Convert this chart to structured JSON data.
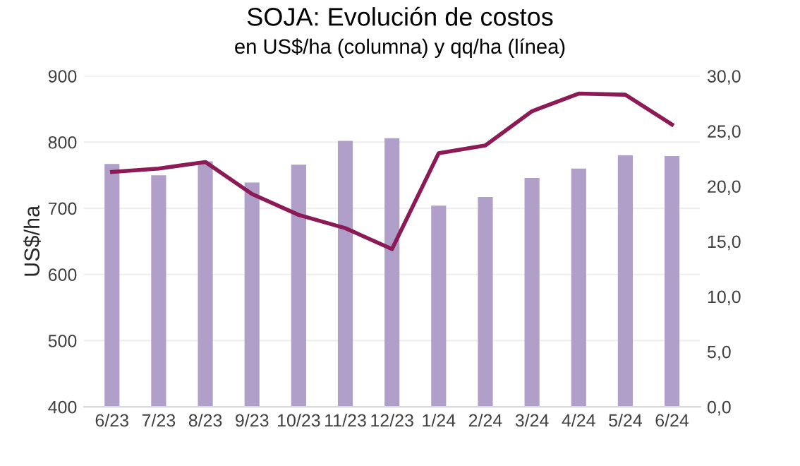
{
  "chart_data": {
    "type": "bar",
    "title": "SOJA: Evolución de costos",
    "subtitle": "en US$/ha (columna) y qq/ha (línea)",
    "ylabel": "US$/ha",
    "categories": [
      "6/23",
      "7/23",
      "8/23",
      "9/23",
      "10/23",
      "11/23",
      "12/23",
      "1/24",
      "2/24",
      "3/24",
      "4/24",
      "5/24",
      "6/24"
    ],
    "series": [
      {
        "color": "#b09fc8",
        "values": [
          767,
          750,
          771,
          739,
          766,
          802,
          806,
          704,
          717,
          746,
          760,
          780,
          779
        ]
      },
      {
        "type": "line",
        "axis": "y2",
        "color": "#8b1a55",
        "values": [
          21.3,
          21.6,
          22.2,
          19.3,
          17.4,
          16.2,
          14.3,
          23.0,
          23.7,
          26.8,
          28.4,
          28.3,
          25.6
        ]
      }
    ],
    "ylim": [
      400,
      900
    ],
    "yticks": [
      400,
      500,
      600,
      700,
      800,
      900
    ],
    "y2lim": [
      0,
      30
    ],
    "y2ticks": [
      {
        "value": 0,
        "label": "0,0"
      },
      {
        "value": 5,
        "label": "5,0"
      },
      {
        "value": 10,
        "label": "10,0"
      },
      {
        "value": 15,
        "label": "15,0"
      },
      {
        "value": 20,
        "label": "20,0"
      },
      {
        "value": 25,
        "label": "25,0"
      },
      {
        "value": 30,
        "label": "30,0"
      }
    ],
    "grid": "y",
    "marker": "none",
    "line_style": "solid"
  }
}
